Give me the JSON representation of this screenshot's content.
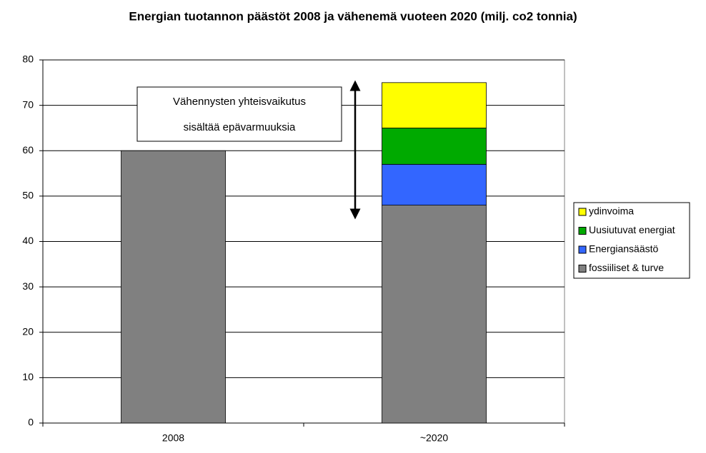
{
  "chart_data": {
    "type": "stacked_bar",
    "title": "Energian tuotannon päästöt 2008 ja vähenemä vuoteen 2020 (milj. co2 tonnia)",
    "categories": [
      "2008",
      "~2020"
    ],
    "series": [
      {
        "name": "fossiiliset & turve",
        "color": "#808080",
        "values": [
          60,
          48
        ]
      },
      {
        "name": "Energiansäästö",
        "color": "#3366ff",
        "values": [
          null,
          9
        ]
      },
      {
        "name": "Uusiutuvat energiat",
        "color": "#00aa00",
        "values": [
          null,
          8
        ]
      },
      {
        "name": "ydinvoima",
        "color": "#ffff00",
        "values": [
          null,
          10
        ]
      }
    ],
    "annotation": [
      "Vähennysten yhteisvaikutus",
      "sisältää epävarmuuksia"
    ],
    "ylim": [
      0,
      80
    ],
    "yticks": [
      0,
      10,
      20,
      30,
      40,
      50,
      60,
      70,
      80
    ],
    "grid": true,
    "legend": "right"
  }
}
